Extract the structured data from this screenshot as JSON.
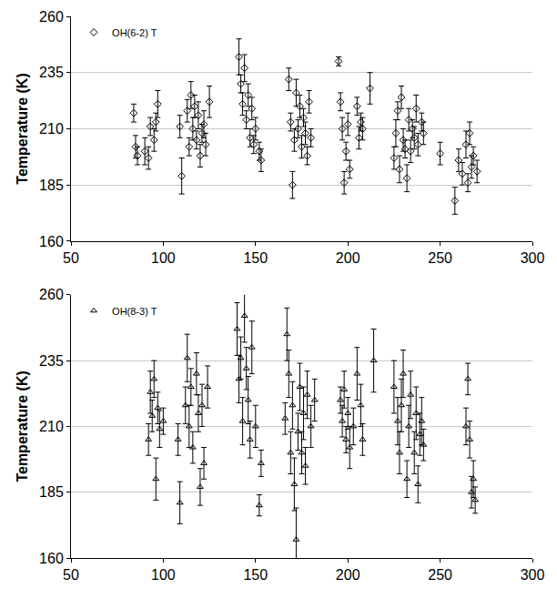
{
  "chart_data": [
    {
      "type": "scatter",
      "x": [
        84,
        85,
        86,
        90,
        92,
        93,
        95,
        96,
        97,
        109,
        110,
        113,
        114,
        115,
        116,
        117,
        118,
        119,
        120,
        121,
        122,
        123,
        125,
        141,
        142,
        143,
        144,
        145,
        146,
        147,
        148,
        149,
        150,
        152,
        153,
        168,
        169,
        170,
        171,
        172,
        173,
        174,
        175,
        176,
        177,
        178,
        179,
        180,
        195,
        196,
        197,
        198,
        199,
        200,
        201,
        205,
        206,
        207,
        208,
        212,
        225,
        226,
        227,
        228,
        229,
        230,
        231,
        232,
        233,
        234,
        235,
        236,
        237,
        238,
        240,
        241,
        250,
        258,
        260,
        262,
        264,
        265,
        266,
        267,
        268,
        270
      ],
      "series": [
        {
          "name": "OH(6-2) T",
          "color": "#000000",
          "marker": "diamond-open",
          "values": [
            217,
            202,
            198,
            200,
            197,
            211,
            205,
            213,
            221,
            211,
            189,
            218,
            202,
            225,
            210,
            220,
            205,
            216,
            198,
            208,
            212,
            203,
            222,
            242,
            230,
            221,
            237,
            214,
            225,
            206,
            219,
            203,
            210,
            200,
            196,
            232,
            213,
            185,
            205,
            226,
            210,
            220,
            202,
            215,
            208,
            198,
            222,
            206,
            240,
            222,
            210,
            186,
            200,
            212,
            192,
            220,
            206,
            213,
            210,
            228,
            197,
            208,
            218,
            192,
            224,
            205,
            201,
            188,
            214,
            200,
            210,
            206,
            219,
            203,
            213,
            208,
            199,
            178,
            196,
            190,
            203,
            186,
            208,
            193,
            198,
            191
          ],
          "errors": [
            4,
            5,
            4,
            6,
            5,
            4,
            5,
            4,
            6,
            5,
            8,
            5,
            4,
            6,
            5,
            5,
            4,
            6,
            5,
            4,
            6,
            5,
            7,
            8,
            4,
            5,
            6,
            4,
            5,
            4,
            5,
            4,
            5,
            4,
            5,
            5,
            4,
            6,
            5,
            6,
            4,
            5,
            5,
            4,
            5,
            4,
            5,
            4,
            2,
            4,
            5,
            5,
            4,
            5,
            4,
            4,
            5,
            4,
            5,
            7,
            5,
            6,
            4,
            6,
            5,
            5,
            4,
            6,
            5,
            5,
            4,
            5,
            6,
            5,
            4,
            5,
            5,
            6,
            5,
            5,
            6,
            4,
            5,
            5,
            4,
            5
          ]
        }
      ],
      "ylabel": "Temperature (K)",
      "xlim": [
        50,
        300
      ],
      "xticks": [
        50,
        100,
        150,
        200,
        250,
        300
      ],
      "ylim": [
        160,
        260
      ],
      "yticks": [
        160,
        185,
        210,
        235,
        260
      ],
      "grid": true,
      "legend": "upper left"
    },
    {
      "type": "scatter",
      "x": [
        92,
        93,
        94,
        95,
        96,
        97,
        98,
        100,
        108,
        109,
        112,
        113,
        114,
        115,
        116,
        118,
        119,
        120,
        121,
        122,
        124,
        140,
        141,
        142,
        143,
        144,
        145,
        146,
        147,
        148,
        150,
        152,
        153,
        166,
        167,
        168,
        169,
        170,
        171,
        172,
        173,
        174,
        175,
        176,
        177,
        178,
        180,
        182,
        196,
        197,
        198,
        199,
        200,
        201,
        203,
        205,
        207,
        208,
        214,
        225,
        227,
        228,
        229,
        230,
        232,
        233,
        234,
        236,
        237,
        238,
        239,
        240,
        241,
        264,
        265,
        266,
        267,
        268,
        269
      ],
      "series": [
        {
          "name": "OH(8-3) T",
          "color": "#000000",
          "marker": "triangle-up-open",
          "values": [
            205,
            223,
            214,
            228,
            190,
            217,
            209,
            212,
            205,
            181,
            218,
            236,
            210,
            225,
            202,
            230,
            215,
            187,
            218,
            196,
            225,
            247,
            228,
            236,
            212,
            252,
            232,
            220,
            205,
            240,
            210,
            180,
            196,
            213,
            245,
            230,
            200,
            218,
            188,
            167,
            208,
            225,
            200,
            215,
            195,
            222,
            210,
            220,
            220,
            212,
            224,
            205,
            215,
            202,
            210,
            230,
            218,
            205,
            235,
            225,
            212,
            200,
            218,
            230,
            190,
            210,
            222,
            200,
            215,
            188,
            207,
            212,
            203,
            210,
            228,
            205,
            185,
            190,
            182
          ],
          "errors": [
            6,
            8,
            6,
            7,
            8,
            6,
            7,
            5,
            6,
            8,
            7,
            9,
            8,
            7,
            6,
            8,
            7,
            7,
            8,
            6,
            8,
            10,
            9,
            8,
            9,
            10,
            8,
            9,
            7,
            10,
            8,
            4,
            5,
            6,
            10,
            9,
            8,
            9,
            10,
            12,
            7,
            9,
            8,
            10,
            7,
            9,
            8,
            8,
            5,
            6,
            7,
            5,
            6,
            8,
            7,
            10,
            8,
            6,
            12,
            10,
            9,
            8,
            10,
            9,
            7,
            8,
            9,
            8,
            10,
            7,
            8,
            9,
            6,
            7,
            6,
            7,
            6,
            7,
            5
          ]
        }
      ],
      "ylabel": "Temperature (K)",
      "xlim": [
        50,
        300
      ],
      "xticks": [
        50,
        100,
        150,
        200,
        250,
        300
      ],
      "ylim": [
        160,
        260
      ],
      "yticks": [
        160,
        185,
        210,
        235,
        260
      ],
      "grid": true,
      "legend": "upper left"
    }
  ]
}
